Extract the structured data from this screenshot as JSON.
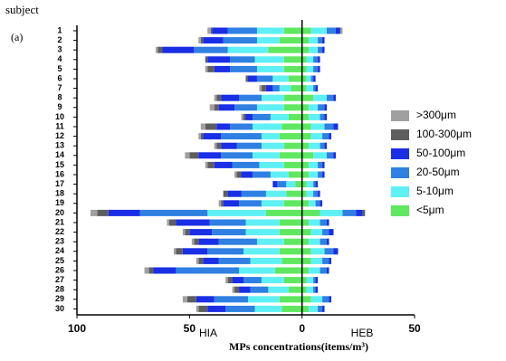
{
  "chart_data": {
    "type": "diverging-stacked-bar",
    "panel_label": "(a)",
    "y_label": "subject",
    "x_label": "MPs concentrations(items/m³)",
    "sides": [
      "HIA",
      "HEB"
    ],
    "categories": [
      "1",
      "2",
      "3",
      "4",
      "5",
      "6",
      "7",
      "8",
      "9",
      "10",
      "11",
      "12",
      "13",
      "14",
      "15",
      "16",
      "17",
      "18",
      "19",
      "20",
      "21",
      "22",
      "23",
      "24",
      "25",
      "26",
      "27",
      "28",
      "29",
      "30"
    ],
    "xlim": [
      -100,
      50
    ],
    "xticks": [
      {
        "value": -100,
        "label": "100"
      },
      {
        "value": -50,
        "label": "50"
      },
      0,
      50
    ],
    "series": [
      {
        "name": ">300μm",
        "color": "#a0a0a0",
        "values": [
          [
            1.5,
            1,
            1,
            0,
            1,
            0,
            1,
            1,
            2,
            1,
            2,
            1,
            1,
            2,
            1,
            1,
            0,
            0,
            1,
            3,
            1,
            1,
            1,
            1,
            1,
            2,
            1,
            1,
            2,
            1
          ],
          [
            1,
            0,
            0,
            0,
            0,
            0,
            0,
            0,
            0,
            0,
            0,
            0,
            0,
            0,
            0,
            0,
            0,
            0,
            0,
            0,
            0,
            0,
            0,
            0,
            0,
            0,
            0,
            0,
            0,
            0
          ]
        ]
      },
      {
        "name": "100-300μm",
        "color": "#5e5e5e",
        "values": [
          [
            0.5,
            1,
            2,
            1,
            3,
            1,
            2,
            2,
            2,
            1,
            5,
            1,
            2,
            4,
            3,
            2,
            0,
            2,
            1,
            5,
            3,
            2,
            2,
            3,
            2,
            2,
            2,
            2,
            4,
            4
          ],
          [
            0,
            0,
            0,
            0,
            0,
            0,
            0,
            0,
            0,
            0,
            0,
            0,
            0,
            0,
            0,
            0,
            0,
            0,
            0,
            1,
            0,
            0,
            0,
            0,
            0,
            0,
            0,
            0,
            0,
            0
          ]
        ]
      },
      {
        "name": "50-100μm",
        "color": "#1a2ee6",
        "values": [
          [
            7,
            9,
            14,
            10,
            7,
            4,
            3,
            8,
            7,
            3,
            6,
            8,
            7,
            10,
            8,
            5,
            2,
            6,
            7,
            14,
            15,
            10,
            9,
            11,
            7,
            10,
            5,
            5,
            8,
            8
          ],
          [
            2,
            1,
            1,
            1,
            1,
            1,
            1,
            1,
            1,
            1,
            2,
            1,
            1,
            1,
            1,
            1,
            1,
            1,
            1,
            3,
            1,
            2,
            1,
            2,
            1,
            1,
            1,
            1,
            1,
            1
          ]
        ]
      },
      {
        "name": "20-50μm",
        "color": "#2f80e2",
        "values": [
          [
            13,
            15,
            15,
            11,
            12,
            7,
            3,
            10,
            10,
            8,
            10,
            18,
            11,
            14,
            12,
            8,
            4,
            11,
            10,
            30,
            16,
            15,
            17,
            16,
            14,
            28,
            8,
            8,
            15,
            13
          ],
          [
            4,
            2,
            2,
            2,
            2,
            1,
            1,
            3,
            3,
            2,
            4,
            3,
            2,
            3,
            2,
            2,
            1,
            2,
            2,
            6,
            3,
            3,
            3,
            4,
            3,
            3,
            1,
            1,
            3,
            2
          ]
        ]
      },
      {
        "name": "5-10μm",
        "color": "#5ef0f5",
        "values": [
          [
            12,
            10,
            18,
            13,
            12,
            7,
            5,
            10,
            12,
            8,
            13,
            8,
            10,
            12,
            11,
            8,
            4,
            9,
            10,
            26,
            15,
            15,
            12,
            16,
            14,
            16,
            10,
            9,
            14,
            12
          ],
          [
            7,
            4,
            4,
            3,
            3,
            2,
            3,
            6,
            4,
            5,
            6,
            5,
            5,
            6,
            4,
            4,
            3,
            3,
            3,
            10,
            5,
            5,
            5,
            6,
            5,
            5,
            3,
            3,
            5,
            4
          ]
        ]
      },
      {
        "name": "<5μm",
        "color": "#5fe85f",
        "values": [
          [
            8,
            10,
            15,
            8,
            8,
            6,
            5,
            8,
            8,
            6,
            9,
            10,
            8,
            10,
            8,
            6,
            3,
            7,
            8,
            16,
            10,
            10,
            8,
            10,
            9,
            12,
            8,
            6,
            10,
            9
          ],
          [
            4,
            3,
            3,
            2,
            2,
            2,
            2,
            5,
            3,
            3,
            4,
            4,
            3,
            5,
            3,
            3,
            2,
            2,
            3,
            8,
            3,
            4,
            3,
            4,
            4,
            3,
            2,
            2,
            4,
            3
          ]
        ]
      }
    ]
  }
}
